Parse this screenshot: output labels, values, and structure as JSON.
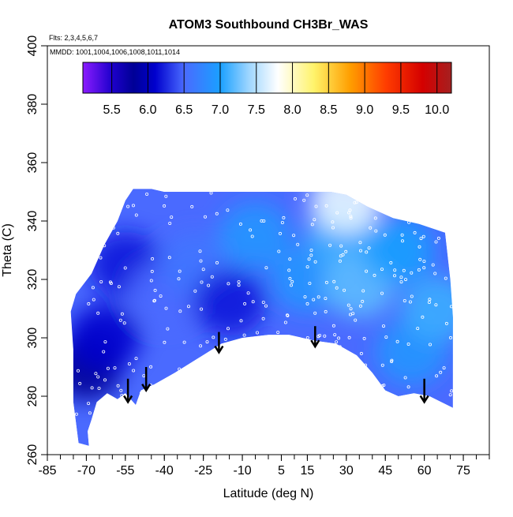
{
  "chart_data": {
    "type": "heatmap",
    "title": "ATOM3 Southbound CH3Br_WAS",
    "notes": [
      "Flts: 2,3,4,5,6,7",
      "MMDD: 1001,1004,1006,1008,1011,1014"
    ],
    "xlabel": "Latitude (deg N)",
    "ylabel": "Theta (C)",
    "xlim": [
      -85,
      85
    ],
    "ylim": [
      260,
      400
    ],
    "x_ticks": [
      -85,
      -70,
      -55,
      -40,
      -25,
      -10,
      5,
      15,
      30,
      45,
      60,
      75
    ],
    "x_tick_labels": [
      "-85",
      "-70",
      "-55",
      "-40",
      "-25",
      "-10",
      "5",
      "15",
      "30",
      "45",
      "60",
      "75"
    ],
    "y_ticks": [
      260,
      280,
      300,
      320,
      340,
      360,
      380,
      400
    ],
    "y_tick_labels": [
      "260",
      "280",
      "300",
      "320",
      "340",
      "360",
      "380",
      "400"
    ],
    "colorbar": {
      "min": 5.1,
      "max": 10.2,
      "tick_values": [
        5.5,
        6.0,
        6.5,
        7.0,
        7.5,
        8.0,
        8.5,
        9.0,
        9.5,
        10.0
      ],
      "tick_labels": [
        "5.5",
        "6.0",
        "6.5",
        "7.0",
        "7.5",
        "8.0",
        "8.5",
        "9.0",
        "9.5",
        "10.0"
      ],
      "stops": [
        {
          "value": 5.1,
          "color": "#8b1cff"
        },
        {
          "value": 5.5,
          "color": "#1e00cc"
        },
        {
          "value": 5.8,
          "color": "#000096"
        },
        {
          "value": 6.1,
          "color": "#0000cd"
        },
        {
          "value": 6.5,
          "color": "#4a6aff"
        },
        {
          "value": 7.0,
          "color": "#1aa0ff"
        },
        {
          "value": 7.4,
          "color": "#9fd6ff"
        },
        {
          "value": 7.8,
          "color": "#ffffff"
        },
        {
          "value": 8.3,
          "color": "#fff36a"
        },
        {
          "value": 8.8,
          "color": "#ff9e00"
        },
        {
          "value": 9.3,
          "color": "#ff3c00"
        },
        {
          "value": 9.8,
          "color": "#d40000"
        },
        {
          "value": 10.2,
          "color": "#a52020"
        }
      ]
    },
    "coverage_outline": [
      [
        -73,
        264
      ],
      [
        -69,
        263
      ],
      [
        -69.5,
        268
      ],
      [
        -68,
        272
      ],
      [
        -66,
        278
      ],
      [
        -62,
        281
      ],
      [
        -58,
        279
      ],
      [
        -55,
        281
      ],
      [
        -51,
        277
      ],
      [
        -49,
        282
      ],
      [
        -44,
        284
      ],
      [
        -36,
        288
      ],
      [
        -27,
        293
      ],
      [
        -18,
        298
      ],
      [
        -10,
        300
      ],
      [
        0,
        301
      ],
      [
        8,
        301
      ],
      [
        18,
        299
      ],
      [
        26,
        298
      ],
      [
        34,
        294
      ],
      [
        40,
        288
      ],
      [
        45,
        282
      ],
      [
        50,
        280
      ],
      [
        56,
        281
      ],
      [
        62,
        280
      ],
      [
        71,
        276
      ],
      [
        71,
        307
      ],
      [
        70,
        320
      ],
      [
        68,
        336
      ],
      [
        58,
        339
      ],
      [
        48,
        341
      ],
      [
        38,
        345
      ],
      [
        30,
        349
      ],
      [
        24,
        350
      ],
      [
        12,
        350
      ],
      [
        0,
        350
      ],
      [
        -8,
        350
      ],
      [
        -20,
        350
      ],
      [
        -40,
        350
      ],
      [
        -45,
        351
      ],
      [
        -52,
        351
      ],
      [
        -55,
        347
      ],
      [
        -58,
        340
      ],
      [
        -63,
        332
      ],
      [
        -68,
        322
      ],
      [
        -74,
        315
      ],
      [
        -76,
        309
      ],
      [
        -75,
        296
      ],
      [
        -75,
        278
      ]
    ],
    "field_regions": [
      {
        "x": -70,
        "y": 290,
        "value": 5.8
      },
      {
        "x": -63,
        "y": 300,
        "value": 6.1
      },
      {
        "x": -55,
        "y": 325,
        "value": 6.2
      },
      {
        "x": -40,
        "y": 315,
        "value": 6.5
      },
      {
        "x": -28,
        "y": 325,
        "value": 6.6
      },
      {
        "x": -15,
        "y": 312,
        "value": 6.2
      },
      {
        "x": -5,
        "y": 335,
        "value": 6.9
      },
      {
        "x": 15,
        "y": 320,
        "value": 6.9
      },
      {
        "x": 28,
        "y": 335,
        "value": 7.1
      },
      {
        "x": 35,
        "y": 318,
        "value": 7.2
      },
      {
        "x": 50,
        "y": 330,
        "value": 7.0
      },
      {
        "x": 55,
        "y": 295,
        "value": 6.9
      },
      {
        "x": 65,
        "y": 310,
        "value": 7.1
      },
      {
        "x": 30,
        "y": 347,
        "value": 7.7
      }
    ],
    "arrows": [
      {
        "x": -54,
        "y_top": 286,
        "y_bottom": 278
      },
      {
        "x": -47,
        "y_top": 290,
        "y_bottom": 282
      },
      {
        "x": -19,
        "y_top": 302,
        "y_bottom": 295
      },
      {
        "x": 18,
        "y_top": 304,
        "y_bottom": 297
      },
      {
        "x": 60,
        "y_top": 286,
        "y_bottom": 278
      }
    ]
  }
}
